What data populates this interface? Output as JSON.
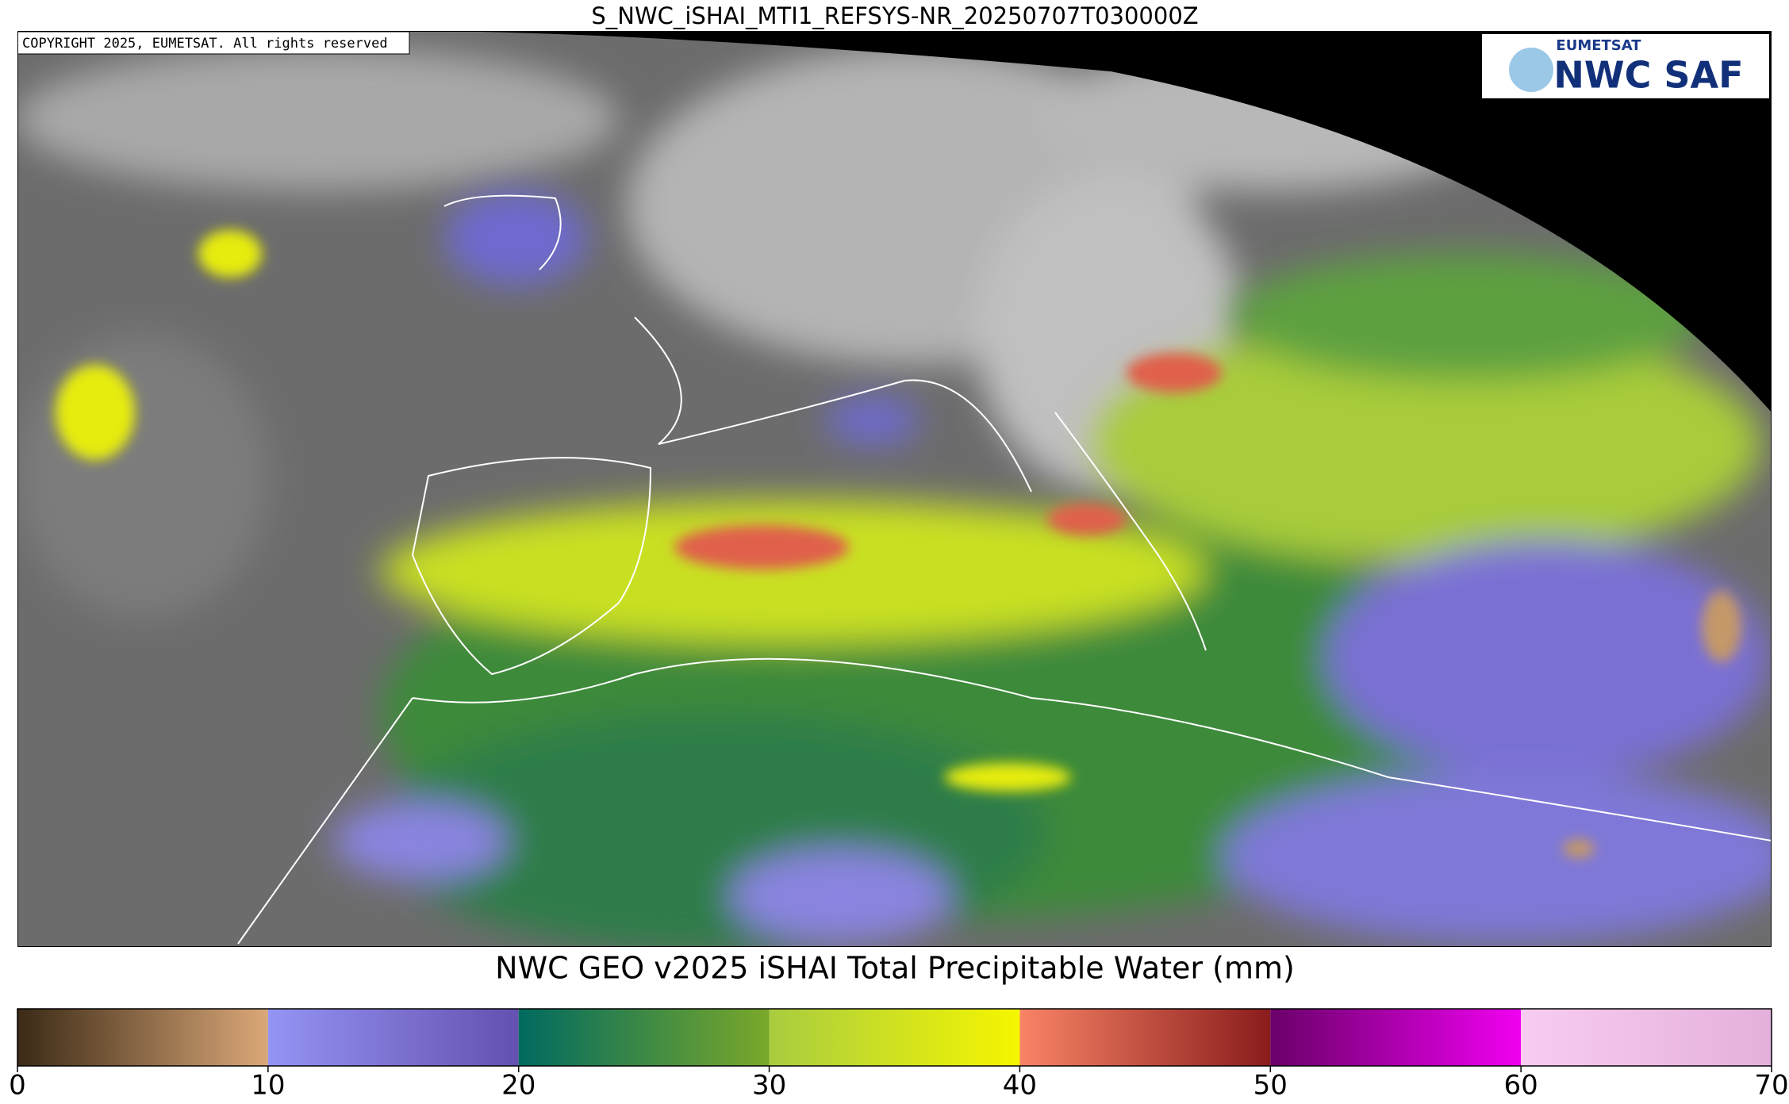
{
  "header": {
    "title": "S_NWC_iSHAI_MTI1_REFSYS-NR_20250707T030000Z"
  },
  "map": {
    "copyright": "COPYRIGHT 2025, EUMETSAT. All rights reserved"
  },
  "logo": {
    "organization": "EUMETSAT",
    "name": "NWC SAF"
  },
  "colorbar": {
    "label": "NWC GEO v2025 iSHAI Total Precipitable Water (mm)",
    "lim": [
      0,
      70
    ],
    "ticks": [
      0,
      10,
      20,
      30,
      40,
      50,
      60,
      70
    ],
    "segments": [
      {
        "from": 0,
        "to": 10,
        "colors": [
          "#3b2a16",
          "#dba878"
        ]
      },
      {
        "from": 10,
        "to": 20,
        "colors": [
          "#9494f4",
          "#6450b0"
        ]
      },
      {
        "from": 20,
        "to": 30,
        "colors": [
          "#006a60",
          "#7aa82a"
        ]
      },
      {
        "from": 30,
        "to": 40,
        "colors": [
          "#a8cc40",
          "#f6f600"
        ]
      },
      {
        "from": 40,
        "to": 50,
        "colors": [
          "#f88466",
          "#8a1c1c"
        ]
      },
      {
        "from": 50,
        "to": 60,
        "colors": [
          "#6a006a",
          "#f000f0"
        ]
      },
      {
        "from": 60,
        "to": 70,
        "colors": [
          "#f8ccf2",
          "#e4b0dc"
        ]
      }
    ]
  }
}
